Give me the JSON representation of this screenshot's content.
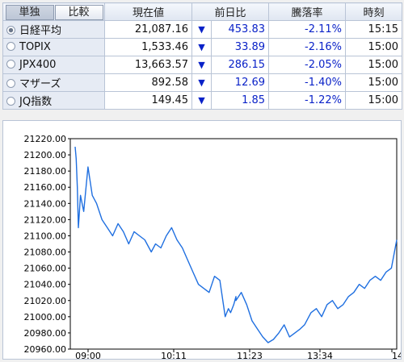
{
  "tabs": [
    {
      "label": "単独",
      "active": true
    },
    {
      "label": "比較",
      "active": false
    }
  ],
  "columns": {
    "price": "現在値",
    "change": "前日比",
    "pct": "騰落率",
    "time": "時刻"
  },
  "rows": [
    {
      "name": "日経平均",
      "selected": true,
      "price": "21,087.16",
      "arrow": "▼",
      "change": "453.83",
      "pct": "-2.11%",
      "time": "15:15"
    },
    {
      "name": "TOPIX",
      "selected": false,
      "price": "1,533.46",
      "arrow": "▼",
      "change": "33.89",
      "pct": "-2.16%",
      "time": "15:00"
    },
    {
      "name": "JPX400",
      "selected": false,
      "price": "13,663.57",
      "arrow": "▼",
      "change": "286.15",
      "pct": "-2.05%",
      "time": "15:00"
    },
    {
      "name": "マザーズ",
      "selected": false,
      "price": "892.58",
      "arrow": "▼",
      "change": "12.69",
      "pct": "-1.40%",
      "time": "15:00"
    },
    {
      "name": "JQ指数",
      "selected": false,
      "price": "149.45",
      "arrow": "▼",
      "change": "1.85",
      "pct": "-1.22%",
      "time": "15:00"
    }
  ],
  "colors": {
    "line": "#1f6fe0",
    "down": "#0a22c8"
  },
  "chart_data": {
    "type": "line",
    "ylim": [
      20960,
      21220
    ],
    "y_tick_labels": [
      "20960.00",
      "20980.00",
      "21000.00",
      "21020.00",
      "21040.00",
      "21060.00",
      "21080.00",
      "21100.00",
      "21120.00",
      "21140.00",
      "21160.00",
      "21180.00",
      "21200.00",
      "21220.00"
    ],
    "x_tick_labels": [
      "09:00",
      "10:11",
      "11:23",
      "13:34",
      "14:"
    ],
    "series": [
      {
        "x": [
          "09:00",
          "09:01",
          "09:02",
          "09:03",
          "09:05",
          "09:08",
          "09:12",
          "09:16",
          "09:20",
          "09:25",
          "09:30",
          "09:35",
          "09:40",
          "09:45",
          "09:50",
          "09:55",
          "10:00",
          "10:05",
          "10:11",
          "10:15",
          "10:20",
          "10:25",
          "10:30",
          "10:35",
          "10:40",
          "10:45",
          "10:50",
          "10:55",
          "11:00",
          "11:05",
          "11:10",
          "11:15",
          "11:20",
          "11:23",
          "11:25",
          "11:28",
          "11:30",
          "12:30",
          "12:35",
          "12:40",
          "12:45",
          "12:50",
          "12:55",
          "13:00",
          "13:05",
          "13:10",
          "13:15",
          "13:20",
          "13:25",
          "13:30",
          "13:34",
          "13:40",
          "13:45",
          "13:50",
          "13:55",
          "14:00",
          "14:05",
          "14:10",
          "14:15",
          "14:20",
          "14:25",
          "14:30",
          "14:35",
          "14:40",
          "14:45",
          "14:50",
          "14:55",
          "15:00"
        ],
        "values": [
          21210,
          21195,
          21160,
          21110,
          21150,
          21130,
          21185,
          21150,
          21140,
          21120,
          21110,
          21100,
          21115,
          21105,
          21090,
          21105,
          21100,
          21095,
          21080,
          21090,
          21085,
          21100,
          21110,
          21095,
          21085,
          21070,
          21055,
          21040,
          21035,
          21030,
          21050,
          21045,
          21000,
          21010,
          21005,
          21015,
          21025,
          21020,
          21030,
          21015,
          20995,
          20985,
          20975,
          20968,
          20972,
          20980,
          20990,
          20975,
          20980,
          20985,
          20990,
          21005,
          21010,
          21000,
          21015,
          21020,
          21010,
          21015,
          21025,
          21030,
          21040,
          21035,
          21045,
          21050,
          21045,
          21055,
          21060,
          21095
        ]
      }
    ]
  }
}
